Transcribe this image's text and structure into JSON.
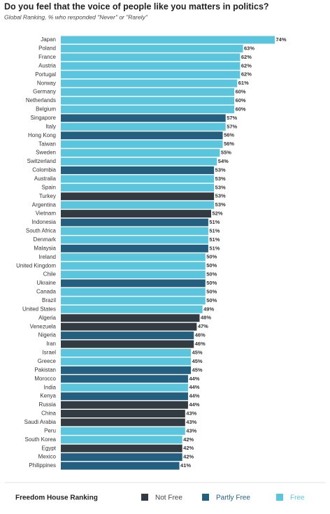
{
  "chart_data": {
    "type": "bar",
    "title": "Do you feel that the voice of people like you matters in politics?",
    "subtitle": "Global Ranking, % who responded \"Never\" or \"Rarely\"",
    "legend_title": "Freedom House Ranking",
    "categories": [
      "Japan",
      "Poland",
      "France",
      "Austria",
      "Portugal",
      "Norway",
      "Germany",
      "Netherlands",
      "Belgium",
      "Singapore",
      "Italy",
      "Hong Kong",
      "Taiwan",
      "Sweden",
      "Switzerland",
      "Colombia",
      "Australia",
      "Spain",
      "Turkey",
      "Argentina",
      "Vietnam",
      "Indonesia",
      "South Africa",
      "Denmark",
      "Malaysia",
      "Ireland",
      "United Kingdom",
      "Chile",
      "Ukraine",
      "Canada",
      "Brazil",
      "United States",
      "Algeria",
      "Venezuela",
      "Nigeria",
      "Iran",
      "Israel",
      "Greece",
      "Pakistan",
      "Morocco",
      "India",
      "Kenya",
      "Russia",
      "China",
      "Saudi Arabia",
      "Peru",
      "South Korea",
      "Egypt",
      "Mexico",
      "Philippines"
    ],
    "series": [
      {
        "name": "Not Free",
        "color": "#333b42",
        "values": [
          null,
          null,
          null,
          null,
          null,
          null,
          null,
          null,
          null,
          null,
          null,
          null,
          null,
          null,
          null,
          null,
          null,
          null,
          53,
          null,
          52,
          null,
          null,
          null,
          null,
          null,
          null,
          null,
          null,
          null,
          null,
          null,
          48,
          47,
          null,
          46,
          null,
          null,
          null,
          null,
          null,
          null,
          44,
          43,
          43,
          null,
          null,
          42,
          null,
          null
        ],
        "value_labels": [
          null,
          null,
          null,
          null,
          null,
          null,
          null,
          null,
          null,
          null,
          null,
          null,
          null,
          null,
          null,
          null,
          null,
          null,
          "53%",
          null,
          "52%",
          null,
          null,
          null,
          null,
          null,
          null,
          null,
          null,
          null,
          null,
          null,
          "48%",
          "47%",
          null,
          "46%",
          null,
          null,
          null,
          null,
          null,
          null,
          "44%",
          "43%",
          "43%",
          null,
          null,
          "42%",
          null,
          null
        ]
      },
      {
        "name": "Partly Free",
        "color": "#245f80",
        "values": [
          null,
          null,
          null,
          null,
          null,
          null,
          null,
          null,
          null,
          57,
          null,
          56,
          null,
          null,
          null,
          53,
          null,
          null,
          null,
          null,
          null,
          51,
          null,
          null,
          51,
          null,
          null,
          null,
          50,
          null,
          null,
          null,
          null,
          null,
          46,
          null,
          null,
          null,
          45,
          44,
          null,
          44,
          null,
          null,
          null,
          null,
          null,
          null,
          42,
          41
        ],
        "value_labels": [
          null,
          null,
          null,
          null,
          null,
          null,
          null,
          null,
          null,
          "57%",
          null,
          "56%",
          null,
          null,
          null,
          "53%",
          null,
          null,
          null,
          null,
          null,
          "51%",
          null,
          null,
          "51%",
          null,
          null,
          null,
          "50%",
          null,
          null,
          null,
          null,
          null,
          "46%",
          null,
          null,
          null,
          "45%",
          "44%",
          null,
          "44%",
          null,
          null,
          null,
          null,
          null,
          null,
          "42%",
          "41%"
        ]
      },
      {
        "name": "Free",
        "color": "#5bc5de",
        "values": [
          74,
          63,
          62,
          62,
          62,
          61,
          60,
          60,
          60,
          null,
          57,
          null,
          56,
          55,
          54,
          null,
          53,
          53,
          null,
          53,
          null,
          null,
          51,
          51,
          null,
          50,
          50,
          50,
          null,
          50,
          50,
          49,
          null,
          null,
          null,
          null,
          45,
          45,
          null,
          null,
          44,
          null,
          null,
          null,
          null,
          43,
          42,
          null,
          null,
          null
        ],
        "value_labels": [
          "74%",
          "63%",
          "62%",
          "62%",
          "62%",
          "61%",
          "60%",
          "60%",
          "60%",
          null,
          "57%",
          null,
          "56%",
          "55%",
          "54%",
          null,
          "53%",
          "53%",
          null,
          "53%",
          null,
          null,
          "51%",
          "51%",
          null,
          "50%",
          "50%",
          "50%",
          null,
          "50%",
          "50%",
          "49%",
          null,
          null,
          null,
          null,
          "45%",
          "45%",
          null,
          null,
          "44%",
          null,
          null,
          null,
          null,
          "43%",
          "42%",
          null,
          null,
          null
        ]
      }
    ]
  }
}
